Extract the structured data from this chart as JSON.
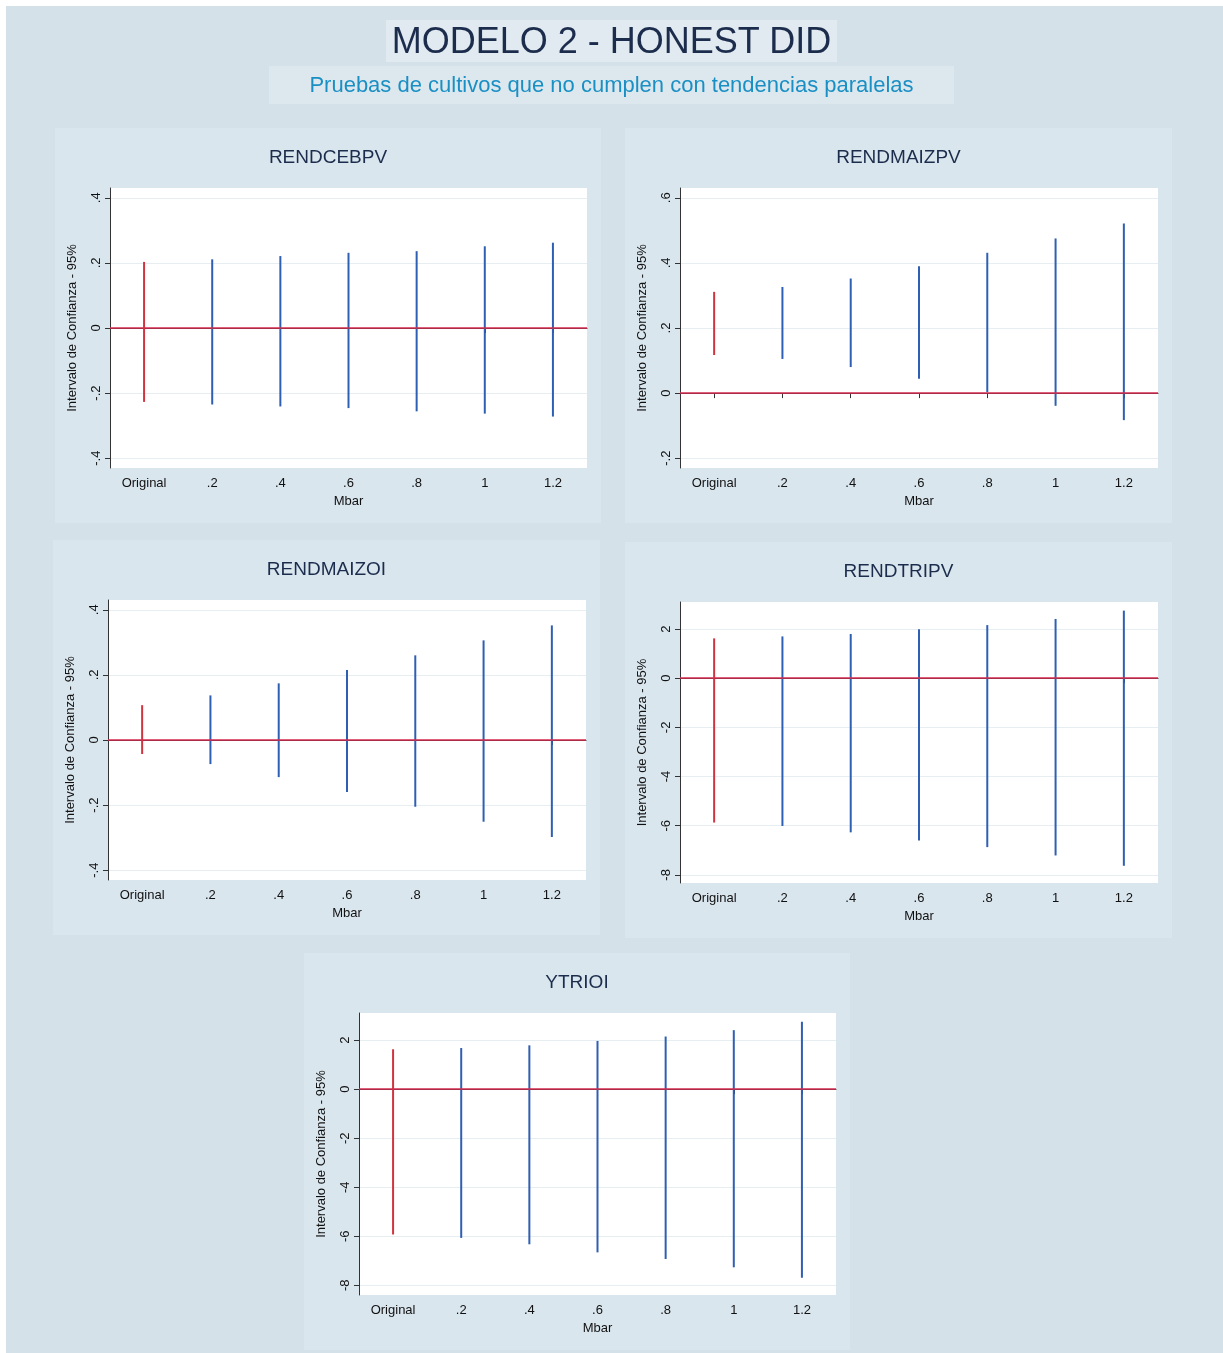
{
  "chart_data": [
    {
      "type": "other",
      "title": "MODELO 2 - HONEST DID",
      "subtitle": "Pruebas de cultivos que no cumplen con tendencias paralelas"
    },
    {
      "type": "bar",
      "title": "RENDCEBPV",
      "xlabel": "Mbar",
      "ylabel": "Intervalo de Confianza - 95%",
      "categories": [
        "Original",
        ".2",
        ".4",
        ".6",
        ".8",
        "1",
        "1.2"
      ],
      "base": [
        -0.227,
        -0.235,
        -0.241,
        -0.246,
        -0.256,
        -0.263,
        -0.272
      ],
      "values": [
        0.43,
        0.446,
        0.462,
        0.477,
        0.492,
        0.514,
        0.534
      ],
      "colors": [
        "#d0343f",
        "#2f5fb3",
        "#2f5fb3",
        "#2f5fb3",
        "#2f5fb3",
        "#2f5fb3",
        "#2f5fb3"
      ],
      "ylim": [
        -0.43,
        0.43
      ],
      "yticks": [
        {
          "value": -0.4,
          "label": "-.4"
        },
        {
          "value": -0.2,
          "label": "-.2"
        },
        0,
        {
          "value": 0.2,
          "label": ".2"
        },
        {
          "value": 0.4,
          "label": ".4"
        }
      ],
      "grid": "y",
      "ref_lines": [
        {
          "axis": "y",
          "value": 0,
          "color": "#d62a4e"
        }
      ]
    },
    {
      "type": "bar",
      "title": "RENDMAIZPV",
      "xlabel": "Mbar",
      "ylabel": "Intervalo de Confianza - 95%",
      "categories": [
        "Original",
        ".2",
        ".4",
        ".6",
        ".8",
        "1",
        "1.2"
      ],
      "base": [
        0.117,
        0.105,
        0.08,
        0.044,
        0.003,
        -0.039,
        -0.083
      ],
      "values": [
        0.194,
        0.221,
        0.272,
        0.346,
        0.428,
        0.514,
        0.604
      ],
      "colors": [
        "#d0343f",
        "#2f5fb3",
        "#2f5fb3",
        "#2f5fb3",
        "#2f5fb3",
        "#2f5fb3",
        "#2f5fb3"
      ],
      "ylim": [
        -0.23,
        0.63
      ],
      "yticks": [
        {
          "value": -0.2,
          "label": "-.2"
        },
        0,
        {
          "value": 0.2,
          "label": ".2"
        },
        {
          "value": 0.4,
          "label": ".4"
        },
        {
          "value": 0.6,
          "label": ".6"
        }
      ],
      "grid": "y",
      "ref_lines": [
        {
          "axis": "y",
          "value": 0,
          "color": "#d62a4e"
        }
      ]
    },
    {
      "type": "bar",
      "title": "RENDMAIZOI",
      "xlabel": "Mbar",
      "ylabel": "Intervalo de Confianza - 95%",
      "categories": [
        "Original",
        ".2",
        ".4",
        ".6",
        ".8",
        "1",
        "1.2"
      ],
      "base": [
        -0.043,
        -0.074,
        -0.114,
        -0.16,
        -0.205,
        -0.251,
        -0.298
      ],
      "values": [
        0.15,
        0.211,
        0.288,
        0.375,
        0.465,
        0.557,
        0.65
      ],
      "colors": [
        "#d0343f",
        "#2f5fb3",
        "#2f5fb3",
        "#2f5fb3",
        "#2f5fb3",
        "#2f5fb3",
        "#2f5fb3"
      ],
      "ylim": [
        -0.43,
        0.43
      ],
      "yticks": [
        {
          "value": -0.4,
          "label": "-.4"
        },
        {
          "value": -0.2,
          "label": "-.2"
        },
        0,
        {
          "value": 0.2,
          "label": ".2"
        },
        {
          "value": 0.4,
          "label": ".4"
        }
      ],
      "grid": "y",
      "ref_lines": [
        {
          "axis": "y",
          "value": 0,
          "color": "#d62a4e"
        }
      ]
    },
    {
      "type": "bar",
      "title": "RENDTRIPV",
      "xlabel": "Mbar",
      "ylabel": "Intervalo de Confianza - 95%",
      "categories": [
        "Original",
        ".2",
        ".4",
        ".6",
        ".8",
        "1",
        "1.2"
      ],
      "base": [
        -5.87,
        -6.01,
        -6.27,
        -6.6,
        -6.87,
        -7.21,
        -7.63
      ],
      "values": [
        7.49,
        7.71,
        8.07,
        8.59,
        9.03,
        9.62,
        10.38
      ],
      "colors": [
        "#d0343f",
        "#2f5fb3",
        "#2f5fb3",
        "#2f5fb3",
        "#2f5fb3",
        "#2f5fb3",
        "#2f5fb3"
      ],
      "ylim": [
        -8.33,
        3.1
      ],
      "yticks": [
        -8,
        -6,
        -4,
        -2,
        0,
        2
      ],
      "grid": "y",
      "ref_lines": [
        {
          "axis": "y",
          "value": 0,
          "color": "#d62a4e"
        }
      ]
    },
    {
      "type": "bar",
      "title": "YTRIOI",
      "xlabel": "Mbar",
      "ylabel": "Intervalo de Confianza - 95%",
      "categories": [
        "Original",
        ".2",
        ".4",
        ".6",
        ".8",
        "1",
        "1.2"
      ],
      "base": [
        -5.93,
        -6.07,
        -6.33,
        -6.66,
        -6.93,
        -7.27,
        -7.7
      ],
      "values": [
        7.56,
        7.75,
        8.12,
        8.63,
        9.08,
        9.68,
        10.45
      ],
      "colors": [
        "#d0343f",
        "#2f5fb3",
        "#2f5fb3",
        "#2f5fb3",
        "#2f5fb3",
        "#2f5fb3",
        "#2f5fb3"
      ],
      "ylim": [
        -8.4,
        3.11
      ],
      "yticks": [
        -8,
        -6,
        -4,
        -2,
        0,
        2
      ],
      "grid": "y",
      "ref_lines": [
        {
          "axis": "y",
          "value": 0,
          "color": "#d62a4e"
        }
      ]
    }
  ]
}
